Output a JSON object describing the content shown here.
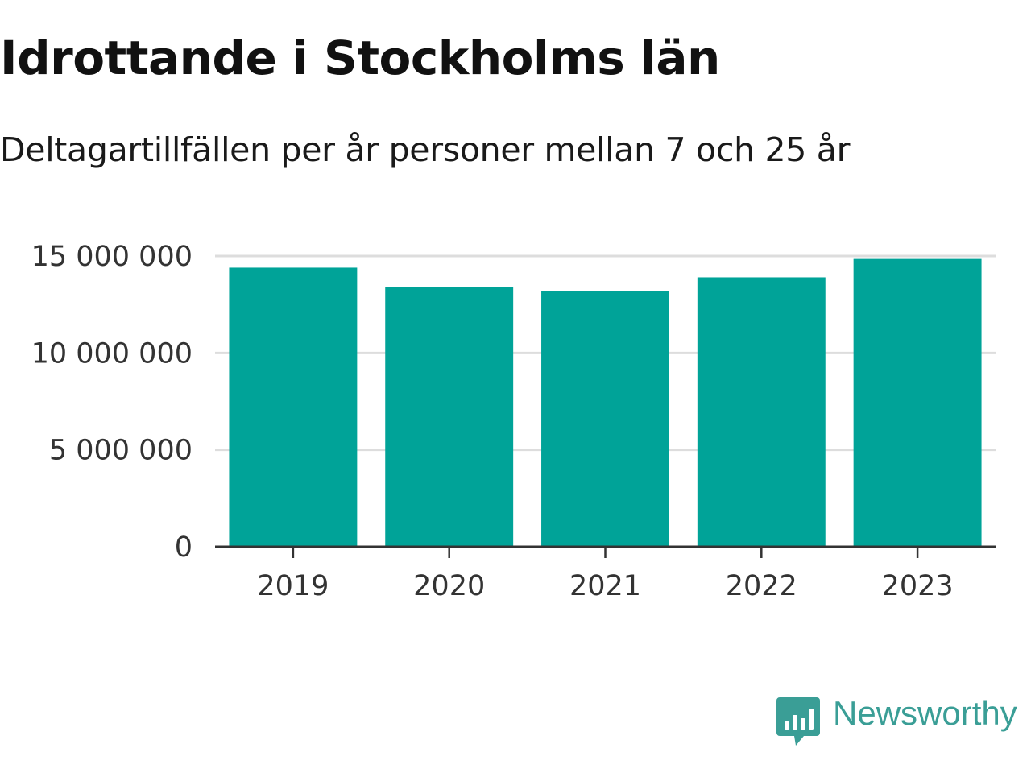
{
  "header": {
    "title": "Idrottande i Stockholms län",
    "subtitle": "Deltagartillfällen per år personer mellan 7 och 25 år"
  },
  "brand": {
    "name": "Newsworthy",
    "icon": "newsworthy-logo-icon",
    "color": "#3a9e96"
  },
  "chart_data": {
    "type": "bar",
    "title": "Idrottande i Stockholms län",
    "subtitle": "Deltagartillfällen per år personer mellan 7 och 25 år",
    "categories": [
      "2019",
      "2020",
      "2021",
      "2022",
      "2023"
    ],
    "values": [
      14400000,
      13400000,
      13200000,
      13900000,
      14850000
    ],
    "ylim": [
      0,
      15000000
    ],
    "yticks": [
      0,
      5000000,
      10000000,
      15000000
    ],
    "ytick_labels": [
      "0",
      "5 000 000",
      "10 000 000",
      "15 000 000"
    ],
    "xlabel": "",
    "ylabel": "",
    "grid": true,
    "bar_color": "#00a398"
  }
}
